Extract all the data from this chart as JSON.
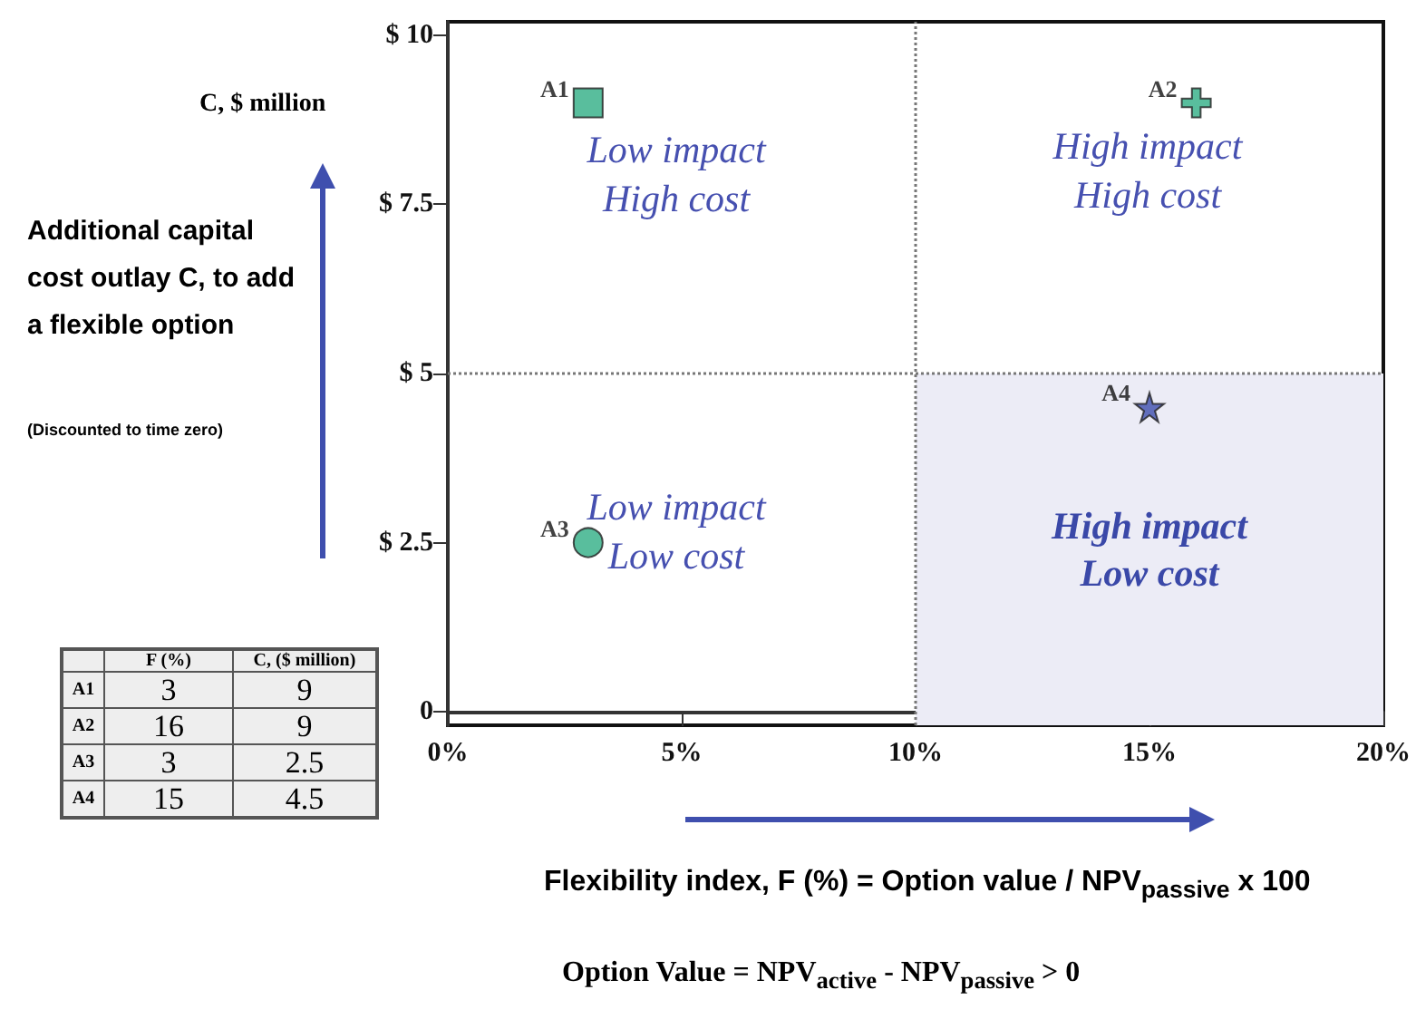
{
  "chart_data": [
    {
      "type": "scatter",
      "ylabel": "C, $ million",
      "xlabel": "Flexibility index, F (%) = Option value / NPV$_{passive}$ x 100",
      "xlim": [
        0,
        20
      ],
      "xticks": [
        {
          "value": 0,
          "label": "0%"
        },
        {
          "value": 5,
          "label": "5%"
        },
        {
          "value": 10,
          "label": "10%"
        },
        {
          "value": 15,
          "label": "15%"
        },
        {
          "value": 20,
          "label": "20%"
        }
      ],
      "ylim": [
        -0.2,
        10.2
      ],
      "yticks": [
        {
          "value": 0,
          "label": "0"
        },
        {
          "value": 2.5,
          "label": "$ 2.5"
        },
        {
          "value": 5,
          "label": "$ 5"
        },
        {
          "value": 7.5,
          "label": "$ 7.5"
        },
        {
          "value": 10,
          "label": "$ 10"
        }
      ],
      "series": [
        {
          "name": "A1",
          "color": "#2fae84",
          "marker": "square",
          "x": [
            3
          ],
          "values": [
            9
          ]
        },
        {
          "name": "A2",
          "color": "#2fae84",
          "marker": "cross",
          "x": [
            16
          ],
          "values": [
            9
          ]
        },
        {
          "name": "A3",
          "color": "#2fae84",
          "marker": "circle",
          "x": [
            3
          ],
          "values": [
            2.5
          ]
        },
        {
          "name": "A4",
          "color": "#3f4fae",
          "marker": "star",
          "x": [
            15
          ],
          "values": [
            4.5
          ]
        }
      ],
      "grid": false,
      "legend": false,
      "ref_lines": [
        {
          "axis": "x",
          "value": 10,
          "color": "#777777",
          "line_style": "dotted"
        },
        {
          "axis": "y",
          "value": 5,
          "color": "#777777",
          "line_style": "dotted"
        }
      ],
      "bands": [
        {
          "axis": "x",
          "from": 10,
          "to": 20,
          "label": "High impact\nLow cost",
          "color": "#ececf6"
        }
      ],
      "annotations": [
        "Additional capital cost outlay  C, to add a flexible option",
        "(Discounted to time zero)",
        "Option Value = NPV$_{active}$ - NPV$_{passive}$ > 0",
        "Low impact\nHigh cost",
        "High impact\nHigh cost",
        "Low impact\nLow cost"
      ]
    },
    {
      "type": "other",
      "categories": [
        "A1",
        "A2",
        "A3",
        "A4"
      ],
      "series": [
        {
          "name": "F (%)",
          "values": [
            3,
            16,
            3,
            15
          ]
        },
        {
          "name": "C, ($ million)",
          "values": [
            9,
            9,
            2.5,
            4.5
          ]
        }
      ],
      "data_labels": true
    }
  ]
}
